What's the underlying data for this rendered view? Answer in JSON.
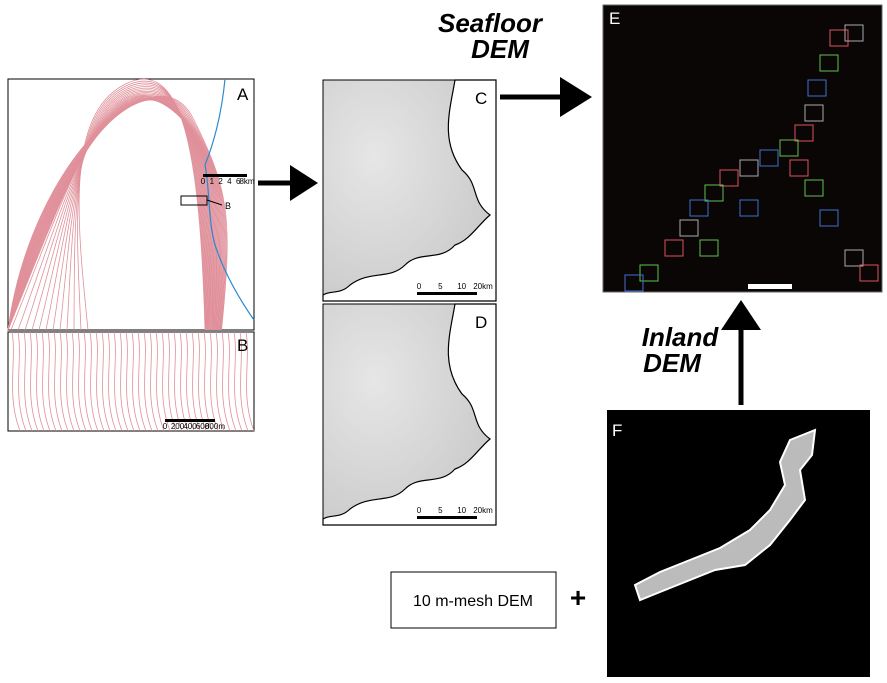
{
  "panels": [
    {
      "label": "A"
    },
    {
      "label": "B"
    },
    {
      "label": "C"
    },
    {
      "label": "D"
    },
    {
      "label": "E"
    },
    {
      "label": "F"
    }
  ],
  "callout": "B",
  "scale_bars": {
    "A": [
      "0",
      "1",
      "2",
      "4",
      "6",
      "8km"
    ],
    "B": [
      "0",
      "200",
      "400",
      "600",
      "800m"
    ],
    "C": [
      "0",
      "5",
      "10",
      "20km"
    ],
    "D": [
      "0",
      "5",
      "10",
      "20km"
    ]
  },
  "seafloor_label": [
    "Seafloor",
    "DEM"
  ],
  "inland_label": [
    "Inland",
    "DEM"
  ],
  "source_box": "10 m-mesh DEM",
  "plus": "+"
}
